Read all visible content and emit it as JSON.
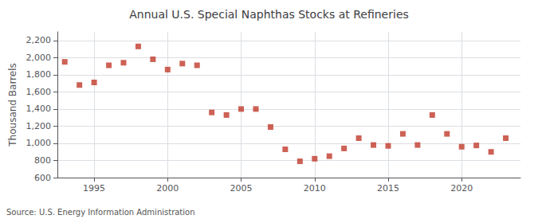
{
  "chart_data": {
    "type": "scatter",
    "title": "Annual U.S. Special Naphthas Stocks at Refineries",
    "ylabel": "Thousand Barrels",
    "source": "Source: U.S. Energy Information Administration",
    "x": [
      1993,
      1994,
      1995,
      1996,
      1997,
      1998,
      1999,
      2000,
      2001,
      2002,
      2003,
      2004,
      2005,
      2006,
      2007,
      2008,
      2009,
      2010,
      2011,
      2012,
      2013,
      2014,
      2015,
      2016,
      2017,
      2018,
      2019,
      2020,
      2021,
      2022,
      2023
    ],
    "values": [
      1950,
      1680,
      1710,
      1910,
      1940,
      2130,
      1980,
      1860,
      1930,
      1910,
      1360,
      1330,
      1400,
      1400,
      1190,
      930,
      790,
      820,
      850,
      940,
      1060,
      980,
      970,
      1110,
      980,
      1330,
      1110,
      960,
      975,
      900,
      1060
    ],
    "color": "#c0392b",
    "marker": "square",
    "xlim": [
      1992.5,
      2024
    ],
    "xticks": [
      1995,
      2000,
      2005,
      2010,
      2015,
      2020
    ],
    "ylim": [
      600,
      2300
    ],
    "yticks": [
      600,
      800,
      {
        "value": 1000,
        "label": "1,000"
      },
      {
        "value": 1200,
        "label": "1,200"
      },
      {
        "value": 1400,
        "label": "1,400"
      },
      {
        "value": 1600,
        "label": "1,600"
      },
      {
        "value": 1800,
        "label": "1,800"
      },
      {
        "value": 2000,
        "label": "2,000"
      },
      {
        "value": 2200,
        "label": "2,200"
      }
    ],
    "grid": true
  }
}
